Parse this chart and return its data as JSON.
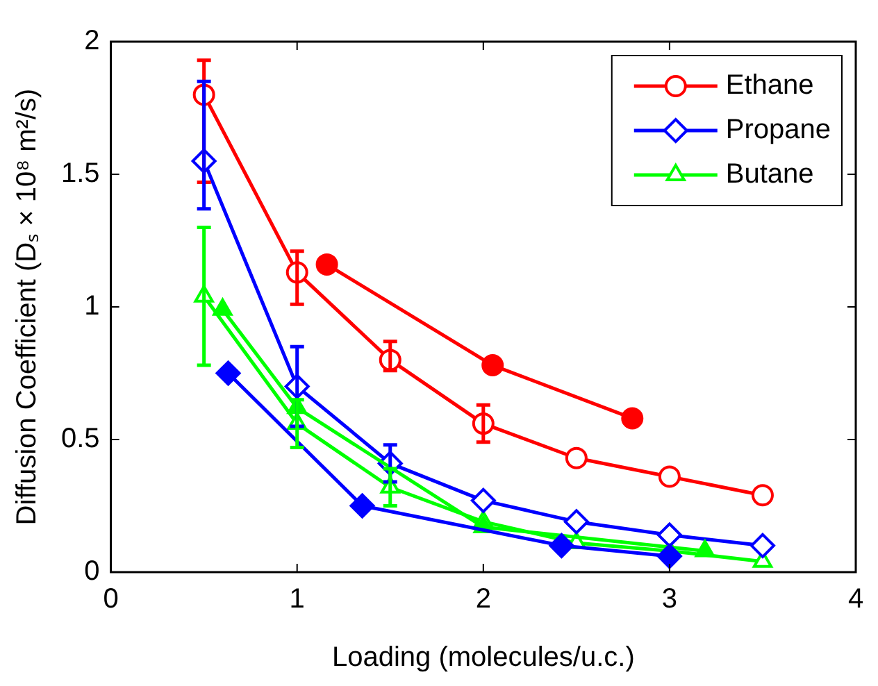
{
  "chart_data": {
    "type": "line",
    "xlabel": "Loading (molecules/u.c.)",
    "ylabel": "Diffusion Coefficient (Dₛ × 10⁸ m²/s)",
    "xlim": [
      0,
      4
    ],
    "xticks": [
      0,
      1,
      2,
      3,
      4
    ],
    "ylim": [
      0,
      2
    ],
    "yticks": [
      0,
      0.5,
      1,
      1.5,
      2
    ],
    "grid": false,
    "legend": "top right",
    "line_style": "solid",
    "series": [
      {
        "name": "Ethane",
        "color": "#ff0000",
        "marker": "circle",
        "x": [
          0.5,
          1,
          1.5,
          2,
          2.5,
          3,
          3.5
        ],
        "values": [
          1.8,
          1.13,
          0.8,
          0.56,
          0.43,
          0.36,
          0.29
        ],
        "errors": [
          [
            1.47,
            1.93
          ],
          [
            1.01,
            1.21
          ],
          [
            0.76,
            0.87
          ],
          [
            0.49,
            0.63
          ],
          null,
          null,
          null
        ]
      },
      {
        "name": "Propane",
        "color": "#0000ff",
        "marker": "diamond",
        "x": [
          0.5,
          1,
          1.5,
          2,
          2.5,
          3,
          3.5
        ],
        "values": [
          1.55,
          0.7,
          0.41,
          0.27,
          0.19,
          0.14,
          0.1
        ],
        "errors": [
          [
            1.37,
            1.85
          ],
          0.15,
          0.07,
          null,
          null,
          null,
          null
        ]
      },
      {
        "name": "Butane",
        "color": "#00ff00",
        "marker": "triangle",
        "x": [
          0.5,
          1,
          1.5,
          2,
          2.5,
          3,
          3.5
        ],
        "values": [
          1.04,
          0.56,
          0.32,
          0.19,
          0.11,
          0.08,
          0.04
        ],
        "errors": [
          [
            0.78,
            1.3
          ],
          0.09,
          0.07,
          null,
          null,
          null,
          null
        ]
      },
      {
        "color": "#ff0000",
        "marker": "circle",
        "x": [
          1.16,
          2.05,
          2.8
        ],
        "values": [
          1.16,
          0.78,
          0.58
        ]
      },
      {
        "color": "#0000ff",
        "marker": "diamond",
        "x": [
          0.63,
          1.35,
          2.42,
          3.0
        ],
        "values": [
          0.75,
          0.25,
          0.1,
          0.06
        ]
      },
      {
        "color": "#00ff00",
        "marker": "triangle",
        "x": [
          0.6,
          1.0,
          2.0,
          3.19
        ],
        "values": [
          0.99,
          0.62,
          0.17,
          0.08
        ]
      }
    ]
  }
}
